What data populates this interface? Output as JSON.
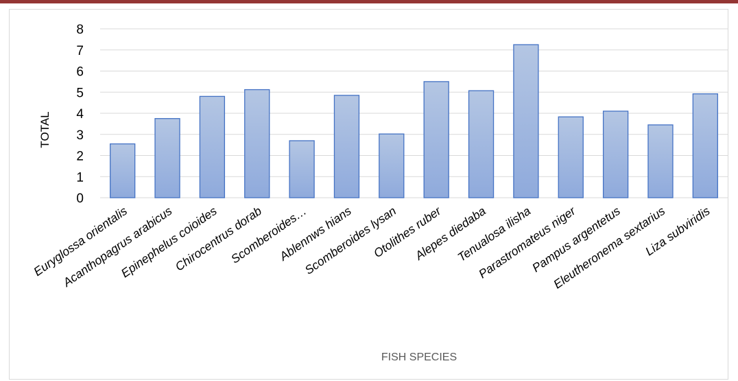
{
  "chart_data": {
    "type": "bar",
    "xlabel": "FISH SPECIES",
    "ylabel": "TOTAL",
    "ylim": [
      0,
      8
    ],
    "yticks": [
      0,
      1,
      2,
      3,
      4,
      5,
      6,
      7,
      8
    ],
    "grid": true,
    "legend": "none",
    "colors": {
      "bar_fill_top": "#b4c6e3",
      "bar_fill_bottom": "#8faadc",
      "bar_stroke": "#4472c4",
      "grid": "#d9d9d9",
      "accent": "#943634"
    },
    "categories": [
      "Euryglossa orientalis",
      "Acanthopagrus arabicus",
      "Epinephelus coioides",
      "Chirocentrus dorab",
      "Scomberoides…",
      "Ablennws hians",
      "Scomberoides lysan",
      "Otolithes ruber",
      "Alepes diedaba",
      "Tenualosa ilisha",
      "Parastromateus niger",
      "Pampus argentetus",
      "Eleutheronema sextarius",
      "Liza subviridis"
    ],
    "values": [
      2.55,
      3.75,
      4.8,
      5.12,
      2.7,
      4.85,
      3.02,
      5.5,
      5.07,
      7.25,
      3.83,
      4.1,
      3.45,
      4.92
    ]
  }
}
